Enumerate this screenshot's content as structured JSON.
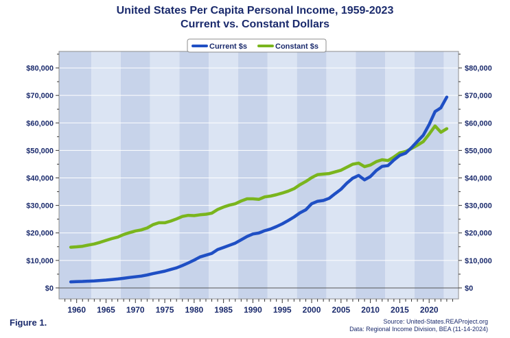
{
  "title_line1": "United States Per Capita Personal Income, 1959-2023",
  "title_line2": "Current vs. Constant Dollars",
  "figure_label": "Figure 1.",
  "source_line1": "Source: United-States.REAProject.org",
  "source_line2": "Data: Regional Income Division, BEA (11-14-2024)",
  "colors": {
    "current": "#1f4fc4",
    "constant": "#7ab51d",
    "text": "#1a2a6c",
    "band_dark": "#c7d3ea",
    "band_light": "#dbe4f3"
  },
  "chart_data": {
    "type": "line",
    "title": "United States Per Capita Personal Income, 1959-2023",
    "subtitle": "Current vs. Constant Dollars",
    "xlabel": "",
    "ylabel": "",
    "xlim": [
      1957,
      2025
    ],
    "ylim": [
      -4000,
      86000
    ],
    "x_ticks": [
      1960,
      1965,
      1970,
      1975,
      1980,
      1985,
      1990,
      1995,
      2000,
      2005,
      2010,
      2015,
      2020
    ],
    "y_ticks": [
      0,
      10000,
      20000,
      30000,
      40000,
      50000,
      60000,
      70000,
      80000
    ],
    "y_tick_labels": [
      "$0",
      "$10,000",
      "$20,000",
      "$30,000",
      "$40,000",
      "$50,000",
      "$60,000",
      "$70,000",
      "$80,000"
    ],
    "grid": true,
    "legend_position": "top-center",
    "x": [
      1959,
      1960,
      1961,
      1962,
      1963,
      1964,
      1965,
      1966,
      1967,
      1968,
      1969,
      1970,
      1971,
      1972,
      1973,
      1974,
      1975,
      1976,
      1977,
      1978,
      1979,
      1980,
      1981,
      1982,
      1983,
      1984,
      1985,
      1986,
      1987,
      1988,
      1989,
      1990,
      1991,
      1992,
      1993,
      1994,
      1995,
      1996,
      1997,
      1998,
      1999,
      2000,
      2001,
      2002,
      2003,
      2004,
      2005,
      2006,
      2007,
      2008,
      2009,
      2010,
      2011,
      2012,
      2013,
      2014,
      2015,
      2016,
      2017,
      2018,
      2019,
      2020,
      2021,
      2022,
      2023
    ],
    "series": [
      {
        "name": "Current $s",
        "values": [
          2200,
          2300,
          2350,
          2450,
          2550,
          2700,
          2850,
          3050,
          3250,
          3500,
          3800,
          4050,
          4300,
          4700,
          5200,
          5650,
          6100,
          6700,
          7300,
          8150,
          9100,
          10100,
          11250,
          11900,
          12550,
          13950,
          14700,
          15500,
          16300,
          17500,
          18700,
          19600,
          19950,
          20800,
          21400,
          22300,
          23300,
          24500,
          25800,
          27300,
          28400,
          30600,
          31500,
          31800,
          32600,
          34300,
          35900,
          38100,
          39900,
          40900,
          39300,
          40500,
          42700,
          44200,
          44500,
          46500,
          48200,
          49000,
          51000,
          53300,
          55500,
          59400,
          64100,
          65500,
          69400
        ]
      },
      {
        "name": "Constant $s",
        "values": [
          14800,
          14950,
          15150,
          15600,
          16000,
          16600,
          17300,
          17950,
          18500,
          19400,
          20100,
          20700,
          21100,
          21800,
          23000,
          23700,
          23700,
          24300,
          25100,
          26000,
          26400,
          26300,
          26600,
          26800,
          27200,
          28500,
          29400,
          30100,
          30600,
          31600,
          32400,
          32400,
          32200,
          33100,
          33400,
          33900,
          34500,
          35200,
          36100,
          37500,
          38700,
          40100,
          41200,
          41400,
          41600,
          42200,
          42800,
          43900,
          45000,
          45400,
          44100,
          44700,
          45900,
          46600,
          46300,
          47600,
          49100,
          49600,
          50700,
          51900,
          53200,
          55900,
          58900,
          56600,
          57900
        ]
      }
    ]
  }
}
